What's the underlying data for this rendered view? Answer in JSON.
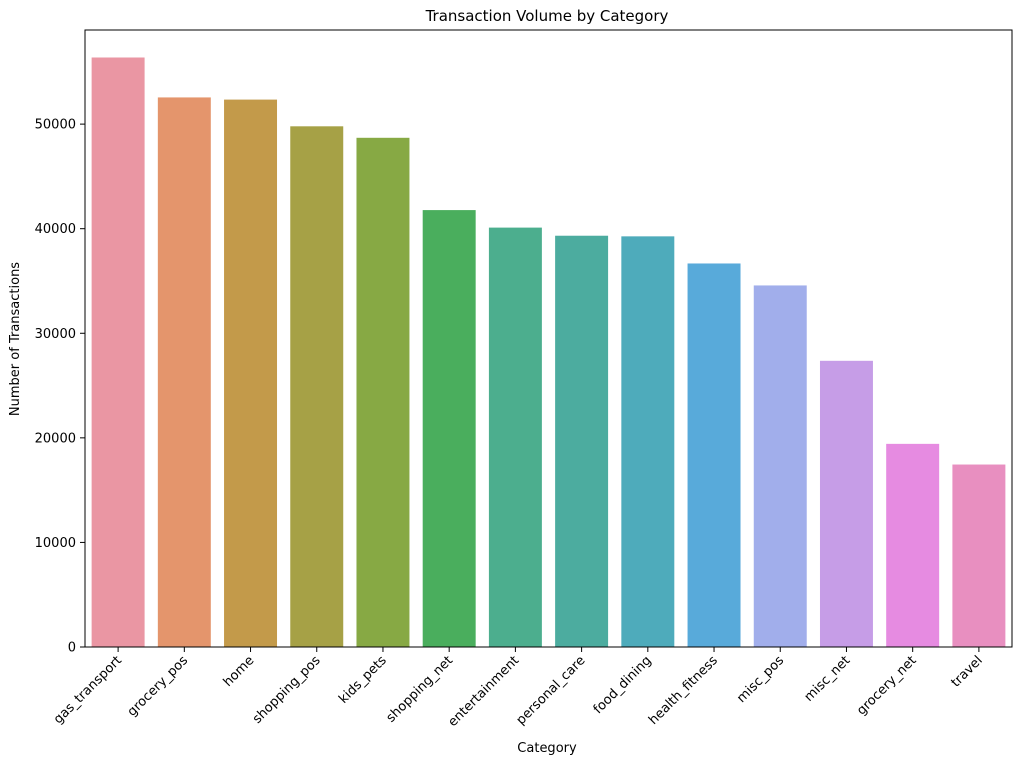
{
  "chart_data": {
    "type": "bar",
    "title": "Transaction Volume by Category",
    "xlabel": "Category",
    "ylabel": "Number of Transactions",
    "categories": [
      "gas_transport",
      "grocery_pos",
      "home",
      "shopping_pos",
      "kids_pets",
      "shopping_net",
      "entertainment",
      "personal_care",
      "food_dining",
      "health_fitness",
      "misc_pos",
      "misc_net",
      "grocery_net",
      "travel"
    ],
    "values": [
      56370,
      52553,
      52345,
      49791,
      48692,
      41779,
      40104,
      39327,
      39268,
      36674,
      34574,
      27367,
      19426,
      17449
    ],
    "colors": [
      "#ea96a3",
      "#e4956c",
      "#c39a4a",
      "#a6a146",
      "#87a944",
      "#4aae5d",
      "#4cae8e",
      "#4cac9f",
      "#4eabbb",
      "#58aada",
      "#a1aeeb",
      "#c69de7",
      "#e68be1",
      "#e88fc0"
    ],
    "ylim": [
      0,
      59000
    ],
    "yticks": [
      0,
      10000,
      20000,
      30000,
      40000,
      50000
    ],
    "grid": false,
    "legend": "none"
  }
}
